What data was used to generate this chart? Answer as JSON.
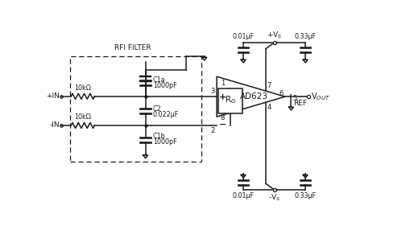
{
  "bg_color": "#ffffff",
  "line_color": "#1a1a1a",
  "rfi_label": "RFI FILTER",
  "ad623_label": "AD623",
  "plus_in": "+IN",
  "minus_in": "-IN",
  "vout": "V",
  "res1_label": "10kΩ",
  "res2_label": "10kΩ",
  "c1a_label1": "C1a",
  "c1a_label2": "1000pF",
  "c1b_label1": "C1b",
  "c1b_label2": "1000pF",
  "c2_label1": "C2",
  "c2_label2": "0.022µF",
  "cap_top_left": "0.01µF",
  "cap_top_right": "0.33µF",
  "cap_bot_left": "0.01µF",
  "cap_bot_right": "0.33µF",
  "vs_pos": "+V",
  "vs_neg": "-V",
  "ref_label": "REF",
  "pin1": "1",
  "pin2": "2",
  "pin3": "3",
  "pin4": "4",
  "pin5": "5",
  "pin6": "6",
  "pin7": "7",
  "pin8": "8",
  "rg_label": "R",
  "plus_sign": "+",
  "minus_sign": "-"
}
